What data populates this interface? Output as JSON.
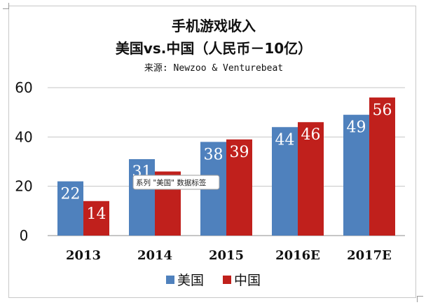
{
  "chart_data": {
    "type": "bar",
    "title": "手机游戏收入",
    "subtitle": "美国vs.中国（人民币－10亿）",
    "source": "来源: Newzoo & Venturebeat",
    "categories": [
      "2013",
      "2014",
      "2015",
      "2016E",
      "2017E"
    ],
    "series": [
      {
        "name": "美国",
        "color": "#4f81bd",
        "values": [
          22,
          31,
          38,
          44,
          49
        ]
      },
      {
        "name": "中国",
        "color": "#c0201c",
        "values": [
          14,
          26,
          39,
          46,
          56
        ]
      }
    ],
    "ylim": [
      0,
      60
    ],
    "yticks": [
      0,
      20,
      40,
      60
    ],
    "grid": true,
    "legend": "bottom",
    "tooltip": "系列 \"美国\" 数据标签"
  }
}
